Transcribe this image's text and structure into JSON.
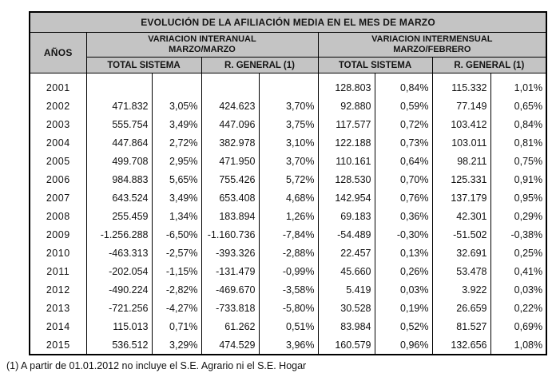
{
  "page": {
    "footnote": "(1) A partir de 01.01.2012 no incluye el S.E. Agrario ni el S.E. Hogar"
  },
  "colors": {
    "header_bg": "#c4c4c4",
    "border": "#000000",
    "text": "#111111"
  },
  "table": {
    "title": "EVOLUCIÓN DE LA AFILIACIÓN MEDIA EN EL MES DE MARZO",
    "years_header": "AÑOS",
    "col_groups": [
      {
        "label": "VARIACION INTERANUAL",
        "sublabel": "MARZO/MARZO"
      },
      {
        "label": "VARIACION INTERMENSUAL",
        "sublabel": "MARZO/FEBRERO"
      }
    ],
    "sub_headers": [
      "TOTAL SISTEMA",
      "R. GENERAL (1)",
      "TOTAL SISTEMA",
      "R. GENERAL (1)"
    ],
    "rows": [
      {
        "year": "2001",
        "cells": [
          "",
          "",
          "",
          "",
          "128.803",
          "0,84%",
          "115.332",
          "1,01%"
        ]
      },
      {
        "year": "2002",
        "cells": [
          "471.832",
          "3,05%",
          "424.623",
          "3,70%",
          "92.880",
          "0,59%",
          "77.149",
          "0,65%"
        ]
      },
      {
        "year": "2003",
        "cells": [
          "555.754",
          "3,49%",
          "447.096",
          "3,75%",
          "117.577",
          "0,72%",
          "103.412",
          "0,84%"
        ]
      },
      {
        "year": "2004",
        "cells": [
          "447.864",
          "2,72%",
          "382.978",
          "3,10%",
          "122.188",
          "0,73%",
          "103.011",
          "0,81%"
        ]
      },
      {
        "year": "2005",
        "cells": [
          "499.708",
          "2,95%",
          "471.950",
          "3,70%",
          "110.161",
          "0,64%",
          "98.211",
          "0,75%"
        ]
      },
      {
        "year": "2006",
        "cells": [
          "984.883",
          "5,65%",
          "755.426",
          "5,72%",
          "128.530",
          "0,70%",
          "125.331",
          "0,91%"
        ]
      },
      {
        "year": "2007",
        "cells": [
          "643.524",
          "3,49%",
          "653.408",
          "4,68%",
          "142.954",
          "0,76%",
          "137.179",
          "0,95%"
        ]
      },
      {
        "year": "2008",
        "cells": [
          "255.459",
          "1,34%",
          "183.894",
          "1,26%",
          "69.183",
          "0,36%",
          "42.301",
          "0,29%"
        ]
      },
      {
        "year": "2009",
        "cells": [
          "-1.256.288",
          "-6,50%",
          "-1.160.736",
          "-7,84%",
          "-54.489",
          "-0,30%",
          "-51.502",
          "-0,38%"
        ]
      },
      {
        "year": "2010",
        "cells": [
          "-463.313",
          "-2,57%",
          "-393.326",
          "-2,88%",
          "22.457",
          "0,13%",
          "32.691",
          "0,25%"
        ]
      },
      {
        "year": "2011",
        "cells": [
          "-202.054",
          "-1,15%",
          "-131.479",
          "-0,99%",
          "45.660",
          "0,26%",
          "53.478",
          "0,41%"
        ]
      },
      {
        "year": "2012",
        "cells": [
          "-490.224",
          "-2,82%",
          "-469.670",
          "-3,58%",
          "5.419",
          "0,03%",
          "3.922",
          "0,03%"
        ]
      },
      {
        "year": "2013",
        "cells": [
          "-721.256",
          "-4,27%",
          "-733.818",
          "-5,80%",
          "30.528",
          "0,19%",
          "26.659",
          "0,22%"
        ]
      },
      {
        "year": "2014",
        "cells": [
          "115.013",
          "0,71%",
          "61.262",
          "0,51%",
          "83.984",
          "0,52%",
          "81.527",
          "0,69%"
        ]
      },
      {
        "year": "2015",
        "cells": [
          "536.512",
          "3,29%",
          "474.529",
          "3,96%",
          "160.579",
          "0,96%",
          "132.656",
          "1,08%"
        ]
      }
    ]
  }
}
